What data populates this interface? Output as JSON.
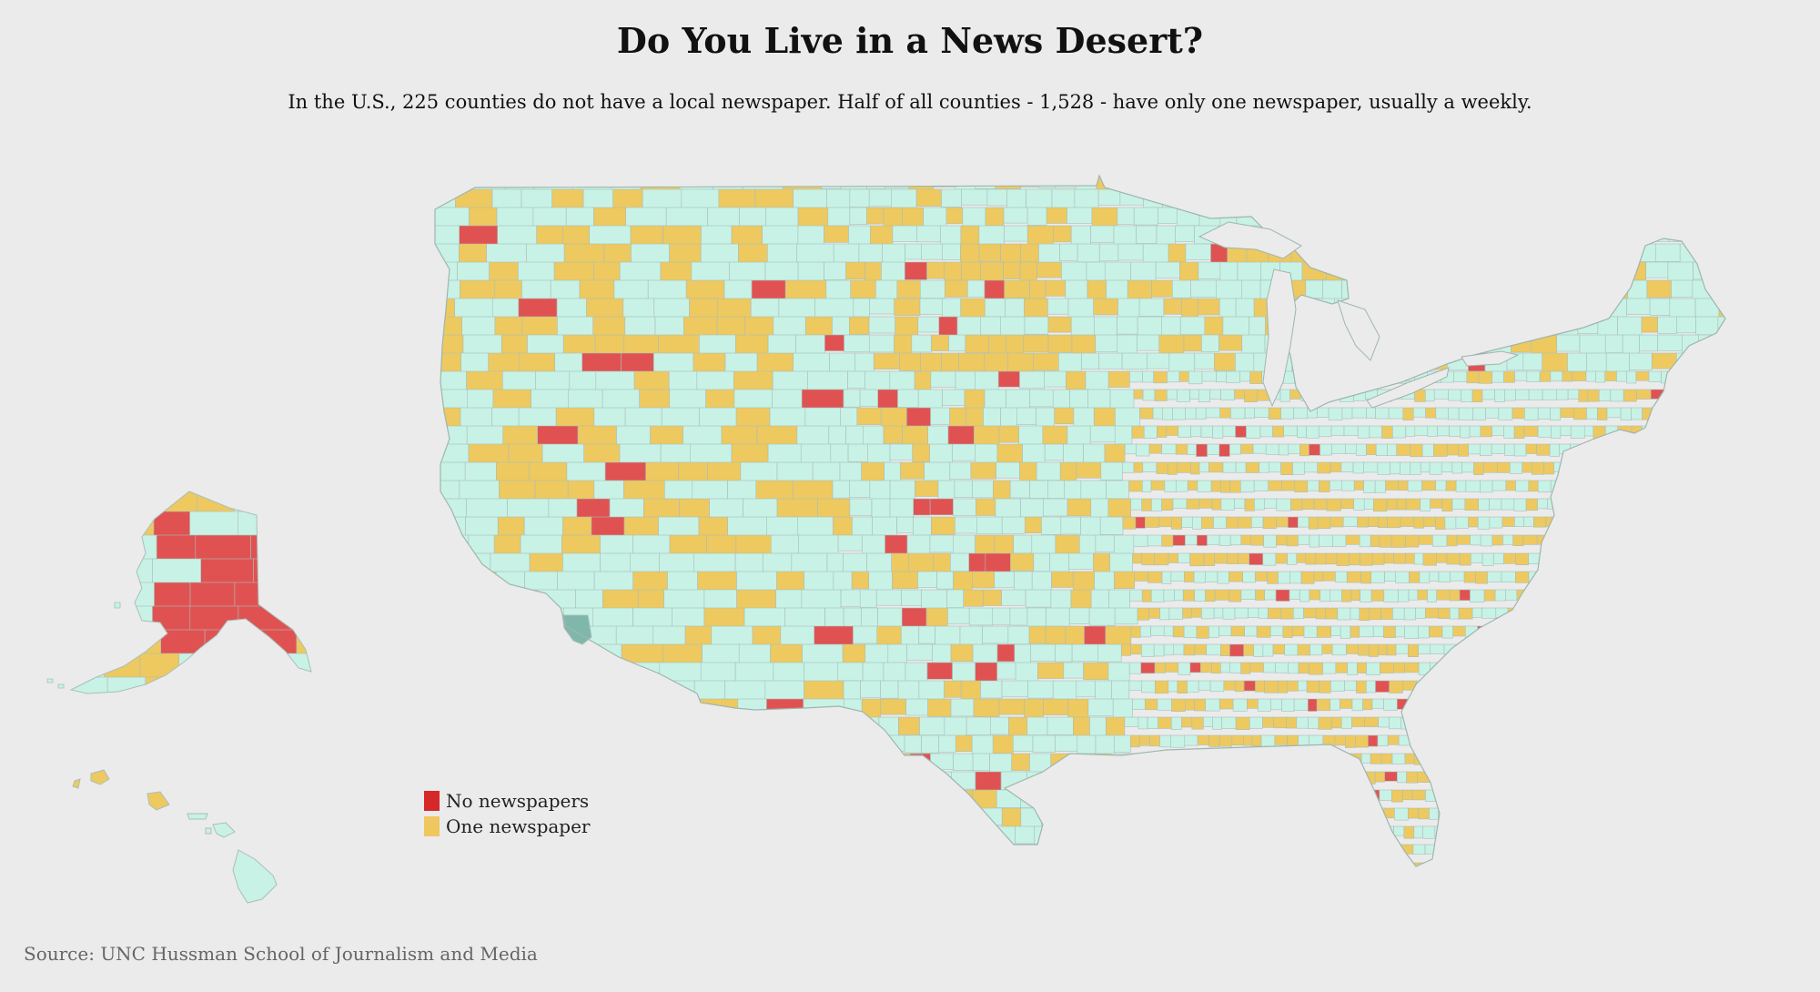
{
  "title": "Do You Live in a News Desert?",
  "subtitle": "In the U.S., 225 counties do not have a local newspaper. Half of all counties - 1,528 - have only one newspaper, usually a weekly.",
  "legend": {
    "items": [
      {
        "label": "No newspapers",
        "color": "#d62828"
      },
      {
        "label": "One newspaper",
        "color": "#f0c75e"
      }
    ]
  },
  "source": "Source: UNC Hussman School of Journalism and Media",
  "colors": {
    "background": "#ebebeb",
    "two_plus": "#c8f2e6",
    "one": "#eec95f",
    "none": "#e05252",
    "no_data": "#7fb8aa",
    "border": "#a9bfb9"
  }
}
